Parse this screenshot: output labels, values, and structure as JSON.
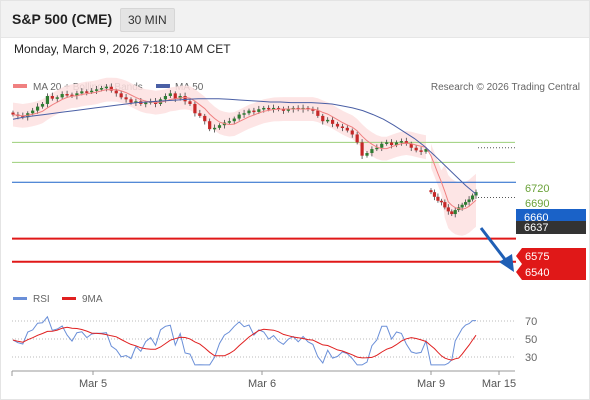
{
  "header": {
    "title": "S&P 500 (CME)",
    "timeframe": "30 MIN"
  },
  "date_line": "Monday, March 9, 2026 7:18:10 AM CET",
  "legend": {
    "bollinger": "MA 20 + Bollinger Bands",
    "ma50": "MA 50",
    "copyright": "Research © 2026 Trading Central"
  },
  "colors": {
    "bollinger": "#f08080",
    "band_fill": "#fde0e0",
    "ma50": "#4a5fa5",
    "rsi": "#6a8fd8",
    "rsi_ma": "#e02020",
    "up": "#2e7d32",
    "down": "#c62828",
    "support": "#e01818",
    "pivot": "#1a62c8",
    "resistance": "#9ccf7a",
    "current": "#333333"
  },
  "chart_data": [
    {
      "type": "line",
      "subtype": "candlestick",
      "ylim": [
        6505,
        6790
      ],
      "x_labels": [
        "Mar 5",
        "Mar 6",
        "Mar 9",
        "Mar 15"
      ],
      "levels": {
        "resistance": [
          6720,
          6690
        ],
        "pivot": 6660,
        "current": 6637,
        "support": [
          6575,
          6540
        ]
      },
      "resistance_labels": [
        "6720",
        "6690"
      ],
      "pivot_label": "6660",
      "current_label": "6637",
      "support_labels": [
        "6575",
        "6540"
      ],
      "close_series": [
        6762,
        6760,
        6758,
        6764,
        6768,
        6774,
        6778,
        6790,
        6786,
        6788,
        6793,
        6792,
        6790,
        6794,
        6797,
        6796,
        6798,
        6800,
        6802,
        6804,
        6798,
        6794,
        6788,
        6785,
        6780,
        6782,
        6778,
        6780,
        6782,
        6778,
        6785,
        6790,
        6794,
        6786,
        6790,
        6782,
        6778,
        6764,
        6760,
        6752,
        6740,
        6742,
        6746,
        6750,
        6752,
        6756,
        6762,
        6764,
        6768,
        6766,
        6770,
        6772,
        6770,
        6772,
        6770,
        6768,
        6770,
        6772,
        6770,
        6772,
        6770,
        6768,
        6760,
        6752,
        6754,
        6748,
        6744,
        6742,
        6738,
        6732,
        6720,
        6700,
        6704,
        6710,
        6712,
        6718,
        6720,
        6716,
        6720,
        6722,
        6718,
        6712,
        6708,
        6706,
        6710
      ],
      "close_series_2": [
        6645,
        6638,
        6632,
        6630,
        6622,
        6616,
        6612,
        6618,
        6622,
        6626,
        6630,
        6634,
        6640,
        6645
      ],
      "ma50_series": [
        6755,
        6758,
        6760,
        6762,
        6764,
        6766,
        6768,
        6770,
        6772,
        6774,
        6776,
        6778,
        6780,
        6781,
        6782,
        6783,
        6784,
        6785,
        6786,
        6786,
        6786,
        6785,
        6784,
        6783,
        6782,
        6781,
        6781,
        6780,
        6780,
        6780,
        6779,
        6778,
        6775,
        6772,
        6768,
        6762,
        6755,
        6746,
        6736,
        6726,
        6714,
        6700,
        6685,
        6670,
        6655,
        6642
      ],
      "rsi": {
        "ylim": [
          15,
          85
        ],
        "ticks": [
          "70",
          "50",
          "30"
        ],
        "legend_rsi": "RSI",
        "legend_ma": "9MA"
      }
    }
  ]
}
